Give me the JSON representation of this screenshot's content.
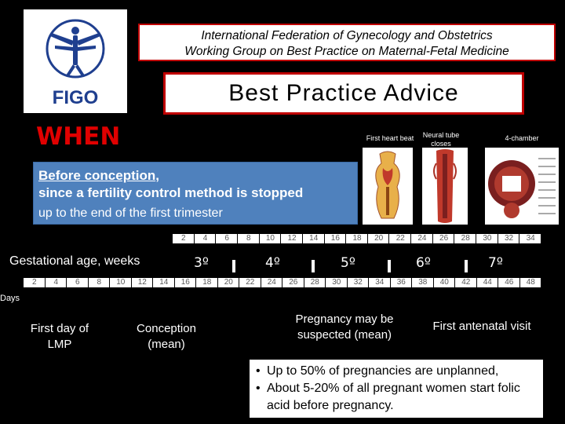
{
  "header": {
    "logo_text": "FIGO",
    "org_line1": "International Federation of Gynecology and Obstetrics",
    "org_line2": "Working Group on Best Practice on Maternal-Fetal Medicine",
    "advice_title": "Best Practice Advice"
  },
  "when_label": "WHEN",
  "timing": {
    "line1a": "Before conception",
    "line1b": ",",
    "line2": "since a fertility control method is stopped",
    "line3": "up to the end of the first trimester"
  },
  "embryo_labels": {
    "first_heart_beat": "First heart beat",
    "neural_tube": "Neural tube closes",
    "four_chamber": "4-chamber"
  },
  "gestational_label": "Gestational age, weeks",
  "days_label": "Days",
  "top_ticks": [
    "2",
    "4",
    "6",
    "8",
    "10",
    "12",
    "14",
    "16",
    "18",
    "20",
    "22",
    "24",
    "26",
    "28",
    "30",
    "32",
    "34"
  ],
  "bottom_ticks": [
    "2",
    "4",
    "6",
    "8",
    "10",
    "12",
    "14",
    "16",
    "18",
    "20",
    "22",
    "24",
    "26",
    "28",
    "30",
    "32",
    "34",
    "36",
    "38",
    "40",
    "42",
    "44",
    "46",
    "48"
  ],
  "weeks": [
    "3º",
    "4º",
    "5º",
    "6º",
    "7º"
  ],
  "captions": {
    "lmp": "First day of LMP",
    "conception": "Conception (mean)",
    "pregnancy": "Pregnancy may be suspected (mean)",
    "antenatal": "First antenatal visit"
  },
  "bullets": [
    "Up to 50% of pregnancies are unplanned,",
    "About 5-20% of all pregnant women start folic acid before pregnancy."
  ],
  "colors": {
    "accent_red": "#c00000",
    "when_red": "#e00000",
    "blue_box": "#4f81bd",
    "logo_blue": "#1f3f8f"
  }
}
